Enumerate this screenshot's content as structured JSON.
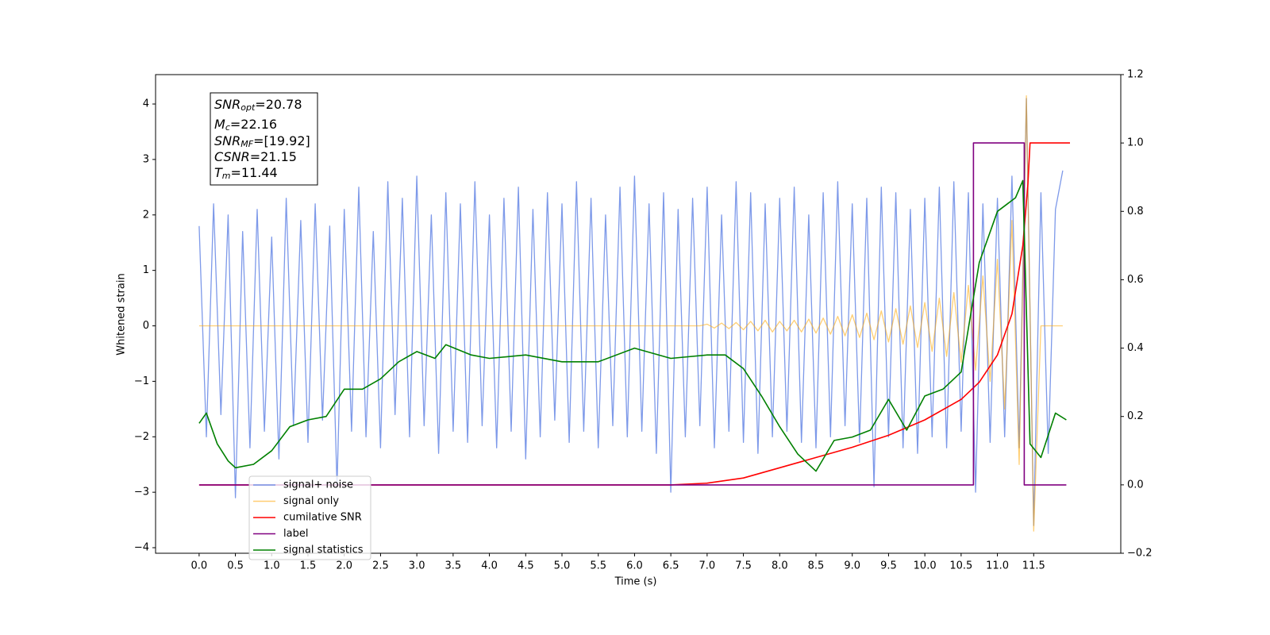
{
  "chart_data": {
    "type": "line",
    "x_label": "Time (s)",
    "y_label": "Whitened strain",
    "xlim": [
      -0.6,
      12.7
    ],
    "ylim": [
      -4.1,
      4.53
    ],
    "y2lim": [
      -0.2,
      1.2
    ],
    "xticks": [
      {
        "value": 0,
        "label": "0.0"
      },
      0.5,
      {
        "value": 1,
        "label": "1.0"
      },
      1.5,
      {
        "value": 2,
        "label": "2.0"
      },
      2.5,
      {
        "value": 3,
        "label": "3.0"
      },
      3.5,
      {
        "value": 4,
        "label": "4.0"
      },
      4.5,
      {
        "value": 5,
        "label": "5.0"
      },
      5.5,
      {
        "value": 6,
        "label": "6.0"
      },
      6.5,
      {
        "value": 7,
        "label": "7.0"
      },
      7.5,
      {
        "value": 8,
        "label": "8.0"
      },
      8.5,
      {
        "value": 9,
        "label": "9.0"
      },
      9.5,
      {
        "value": 10,
        "label": "10.0"
      },
      10.5,
      {
        "value": 11,
        "label": "11.0"
      },
      11.5
    ],
    "yticks": [
      {
        "value": -4,
        "label": "−4"
      },
      {
        "value": -3,
        "label": "−3"
      },
      {
        "value": -2,
        "label": "−2"
      },
      {
        "value": -1,
        "label": "−1"
      },
      0,
      1,
      2,
      3,
      4
    ],
    "y2ticks": [
      {
        "value": -0.2,
        "label": "−0.2"
      },
      {
        "value": 0,
        "label": "0.0"
      },
      0.2,
      0.4,
      0.6,
      0.8,
      {
        "value": 1,
        "label": "1.0"
      },
      1.2
    ],
    "legend": "lower left",
    "annotation": [
      {
        "name": "SNR",
        "sub": "opt",
        "text": "=20.78"
      },
      {
        "name": "M",
        "sub": "c",
        "text": "=22.16"
      },
      {
        "name": "SNR",
        "sub": "MF",
        "text": "=[19.92]"
      },
      {
        "name": "CSNR",
        "text": "=21.15"
      },
      {
        "name": "T",
        "sub": "m",
        "text": "=11.44"
      }
    ],
    "x": [
      0,
      0.1,
      0.2,
      0.3,
      0.4,
      0.5,
      0.6,
      0.7,
      0.8,
      0.9,
      1,
      1.1,
      1.2,
      1.3,
      1.4,
      1.5,
      1.6,
      1.7,
      1.8,
      1.9,
      2,
      2.1,
      2.2,
      2.3,
      2.4,
      2.5,
      2.6,
      2.7,
      2.8,
      2.9,
      3,
      3.1,
      3.2,
      3.3,
      3.4,
      3.5,
      3.6,
      3.7,
      3.8,
      3.9,
      4,
      4.1,
      4.2,
      4.3,
      4.4,
      4.5,
      4.6,
      4.7,
      4.8,
      4.9,
      5,
      5.1,
      5.2,
      5.3,
      5.4,
      5.5,
      5.6,
      5.7,
      5.8,
      5.9,
      6,
      6.1,
      6.2,
      6.3,
      6.4,
      6.5,
      6.6,
      6.7,
      6.8,
      6.9,
      7,
      7.1,
      7.2,
      7.3,
      7.4,
      7.5,
      7.6,
      7.7,
      7.8,
      7.9,
      8,
      8.1,
      8.2,
      8.3,
      8.4,
      8.5,
      8.6,
      8.7,
      8.8,
      8.9,
      9,
      9.1,
      9.2,
      9.3,
      9.4,
      9.5,
      9.6,
      9.7,
      9.8,
      9.9,
      10,
      10.1,
      10.2,
      10.3,
      10.4,
      10.5,
      10.6,
      10.7,
      10.8,
      10.9,
      11,
      11.1,
      11.2,
      11.3,
      11.4,
      11.5,
      11.6,
      11.7,
      11.8,
      11.9
    ],
    "series": [
      {
        "name": "signal+ noise",
        "color": "#7694e8",
        "axis": "y",
        "values": [
          1.8,
          -2.0,
          2.2,
          -1.6,
          2.0,
          -3.1,
          1.7,
          -2.2,
          2.1,
          -1.9,
          1.6,
          -2.4,
          2.3,
          -1.8,
          1.9,
          -2.1,
          2.2,
          -1.7,
          1.8,
          -2.9,
          2.1,
          -1.9,
          2.5,
          -2.0,
          1.7,
          -2.2,
          2.6,
          -1.6,
          2.3,
          -2.0,
          2.7,
          -1.8,
          2.0,
          -2.3,
          2.4,
          -1.9,
          2.2,
          -2.1,
          2.6,
          -1.8,
          2.0,
          -2.2,
          2.3,
          -1.9,
          2.5,
          -2.4,
          2.1,
          -2.0,
          2.4,
          -1.7,
          2.2,
          -2.1,
          2.6,
          -1.9,
          2.3,
          -2.2,
          2.0,
          -1.8,
          2.5,
          -2.0,
          2.7,
          -1.9,
          2.2,
          -2.3,
          2.4,
          -3.0,
          2.1,
          -2.0,
          2.3,
          -1.8,
          2.5,
          -2.2,
          2.0,
          -1.9,
          2.6,
          -2.1,
          2.4,
          -2.3,
          2.2,
          -2.0,
          2.3,
          -1.9,
          2.5,
          -2.1,
          2.0,
          -2.2,
          2.4,
          -2.0,
          2.6,
          -1.8,
          2.2,
          -2.1,
          2.3,
          -2.9,
          2.5,
          -2.0,
          2.4,
          -2.2,
          2.1,
          -2.3,
          2.3,
          -2.0,
          2.5,
          -2.2,
          2.6,
          -1.9,
          2.4,
          -3.0,
          2.2,
          -2.1,
          2.3,
          -2.0,
          2.7,
          -2.2,
          4.1,
          -3.6,
          2.4,
          -2.3,
          2.1,
          2.8
        ]
      },
      {
        "name": "signal only",
        "color": "#ffa500",
        "axis": "y",
        "values": [
          0,
          0,
          0,
          0,
          0,
          0,
          0,
          0,
          0,
          0,
          0,
          0,
          0,
          0,
          0,
          0,
          0,
          0,
          0,
          0,
          0,
          0,
          0,
          0,
          0,
          0,
          0,
          0,
          0,
          0,
          0,
          0,
          0,
          0,
          0,
          0,
          0,
          0,
          0,
          0,
          0,
          0,
          0,
          0,
          0,
          0,
          0,
          0,
          0,
          0,
          0,
          0,
          0,
          0,
          0,
          0,
          0,
          0,
          0,
          0,
          0,
          0,
          0,
          0,
          0,
          0,
          0,
          0,
          0,
          0,
          0.03,
          -0.04,
          0.05,
          -0.05,
          0.06,
          -0.07,
          0.08,
          -0.09,
          0.1,
          -0.11,
          0.08,
          -0.09,
          0.1,
          -0.11,
          0.12,
          -0.13,
          0.14,
          -0.15,
          0.17,
          -0.18,
          0.2,
          -0.21,
          0.23,
          -0.25,
          0.27,
          -0.29,
          0.31,
          -0.33,
          0.36,
          -0.39,
          0.42,
          -0.46,
          0.5,
          -0.55,
          0.6,
          -0.66,
          0.73,
          -0.8,
          0.9,
          -1.0,
          1.2,
          -1.5,
          1.9,
          -2.5,
          4.15,
          -3.7,
          0,
          0,
          0,
          0
        ]
      },
      {
        "name": "cumilative SNR",
        "color": "#ff0000",
        "axis": "y2",
        "x": [
          0,
          6.5,
          7.0,
          7.5,
          8.0,
          8.5,
          9.0,
          9.5,
          10.0,
          10.5,
          10.75,
          11.0,
          11.2,
          11.35,
          11.42,
          11.45,
          12.0
        ],
        "values": [
          0,
          0,
          0.005,
          0.02,
          0.05,
          0.08,
          0.11,
          0.145,
          0.19,
          0.25,
          0.3,
          0.38,
          0.5,
          0.7,
          0.88,
          1.0,
          1.0
        ]
      },
      {
        "name": "label",
        "color": "#800080",
        "axis": "y2",
        "x": [
          0,
          10.67,
          10.67,
          11.37,
          11.37,
          11.95
        ],
        "values": [
          0,
          0,
          1,
          1,
          0,
          0
        ]
      },
      {
        "name": "signal statistics",
        "color": "#008000",
        "axis": "y2",
        "x": [
          0,
          0.1,
          0.25,
          0.4,
          0.5,
          0.75,
          1.0,
          1.25,
          1.5,
          1.75,
          2.0,
          2.25,
          2.5,
          2.75,
          3.0,
          3.25,
          3.4,
          3.75,
          4.0,
          4.5,
          5.0,
          5.5,
          6.0,
          6.5,
          7.0,
          7.25,
          7.5,
          7.75,
          8.0,
          8.25,
          8.5,
          8.75,
          9.0,
          9.25,
          9.5,
          9.75,
          10.0,
          10.25,
          10.5,
          10.75,
          11.0,
          11.25,
          11.35,
          11.45,
          11.6,
          11.8,
          11.95
        ],
        "values": [
          0.18,
          0.21,
          0.12,
          0.07,
          0.05,
          0.06,
          0.1,
          0.17,
          0.19,
          0.2,
          0.28,
          0.28,
          0.31,
          0.36,
          0.39,
          0.37,
          0.41,
          0.38,
          0.37,
          0.38,
          0.36,
          0.36,
          0.4,
          0.37,
          0.38,
          0.38,
          0.34,
          0.26,
          0.17,
          0.09,
          0.04,
          0.13,
          0.14,
          0.16,
          0.25,
          0.16,
          0.26,
          0.28,
          0.33,
          0.65,
          0.8,
          0.84,
          0.89,
          0.12,
          0.08,
          0.21,
          0.19
        ]
      }
    ]
  }
}
